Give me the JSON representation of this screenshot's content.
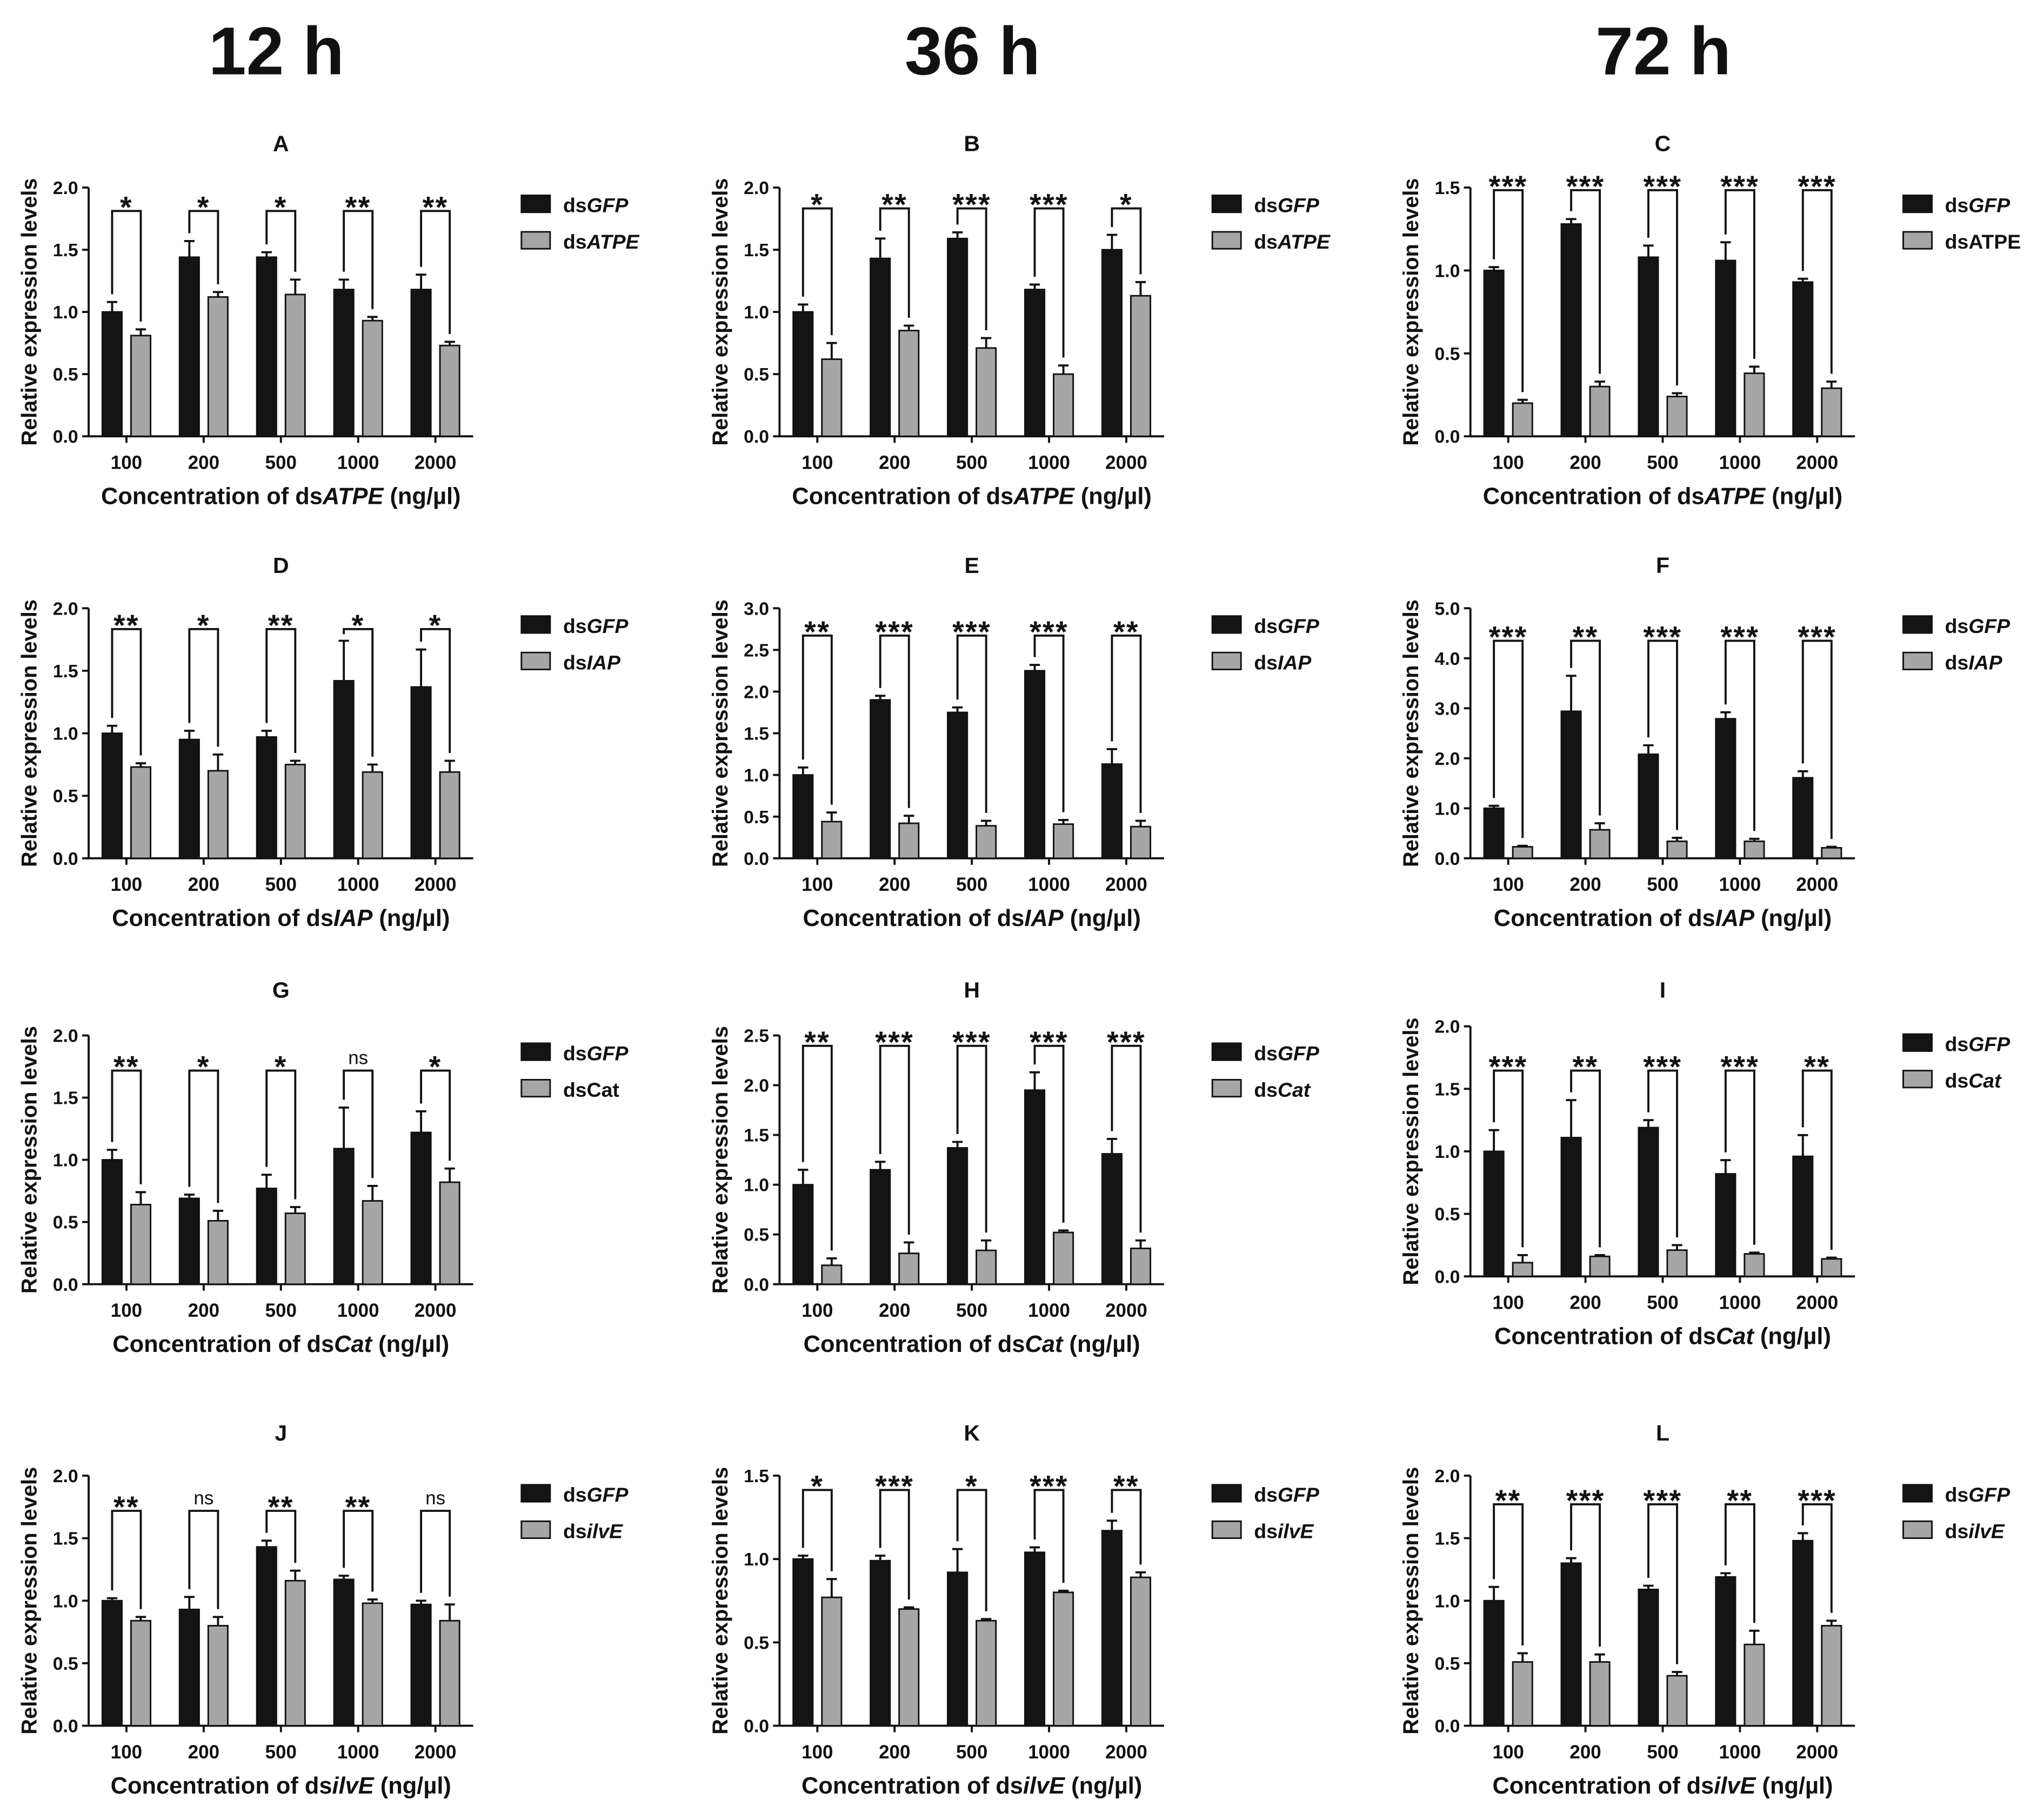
{
  "headers": [
    "12 h",
    "36 h",
    "72 h"
  ],
  "chart_data": [
    {
      "type": "bar",
      "title": "A",
      "categories": [
        "100",
        "200",
        "500",
        "1000",
        "2000"
      ],
      "ylabel": "Relative expression levels",
      "xlabel": {
        "prefix": "Concentration of ds",
        "gene": "ATPE",
        "suffix": " (ng/µl)"
      },
      "ylim": [
        0,
        2.0
      ],
      "yticks": [
        "0.0",
        "0.5",
        "1.0",
        "1.5",
        "2.0"
      ],
      "series": [
        {
          "prefix": "ds",
          "gene": "GFP",
          "gene_italic": true,
          "color": "#141414",
          "values": [
            1.0,
            1.44,
            1.44,
            1.18,
            1.18
          ],
          "errors": [
            0.08,
            0.13,
            0.04,
            0.08,
            0.12
          ]
        },
        {
          "prefix": "ds",
          "gene": "ATPE",
          "gene_italic": true,
          "color": "#a6a6a6",
          "values": [
            0.81,
            1.12,
            1.14,
            0.93,
            0.73
          ],
          "errors": [
            0.05,
            0.04,
            0.12,
            0.03,
            0.03
          ]
        }
      ],
      "significance": [
        "*",
        "*",
        "*",
        "**",
        "**"
      ]
    },
    {
      "type": "bar",
      "title": "B",
      "categories": [
        "100",
        "200",
        "500",
        "1000",
        "2000"
      ],
      "ylabel": "Relative expression levels",
      "xlabel": {
        "prefix": "Concentration of ds",
        "gene": "ATPE",
        "suffix": " (ng/µl)"
      },
      "ylim": [
        0,
        2.0
      ],
      "yticks": [
        "0.0",
        "0.5",
        "1.0",
        "1.5",
        "2.0"
      ],
      "series": [
        {
          "prefix": "ds",
          "gene": "GFP",
          "gene_italic": true,
          "color": "#141414",
          "values": [
            1.0,
            1.43,
            1.59,
            1.18,
            1.5
          ],
          "errors": [
            0.06,
            0.16,
            0.05,
            0.04,
            0.12
          ]
        },
        {
          "prefix": "ds",
          "gene": "ATPE",
          "gene_italic": true,
          "color": "#a6a6a6",
          "values": [
            0.62,
            0.85,
            0.71,
            0.5,
            1.13
          ],
          "errors": [
            0.13,
            0.04,
            0.08,
            0.07,
            0.11
          ]
        }
      ],
      "significance": [
        "*",
        "**",
        "***",
        "***",
        "*"
      ]
    },
    {
      "type": "bar",
      "title": "C",
      "categories": [
        "100",
        "200",
        "500",
        "1000",
        "2000"
      ],
      "ylabel": "Relative expression levels",
      "xlabel": {
        "prefix": "Concentration of ds",
        "gene": "ATPE",
        "suffix": " (ng/µl)"
      },
      "ylim": [
        0,
        1.5
      ],
      "yticks": [
        "0.0",
        "0.5",
        "1.0",
        "1.5"
      ],
      "series": [
        {
          "prefix": "ds",
          "gene": "GFP",
          "gene_italic": true,
          "color": "#141414",
          "values": [
            1.0,
            1.28,
            1.08,
            1.06,
            0.93
          ],
          "errors": [
            0.02,
            0.03,
            0.07,
            0.11,
            0.02
          ]
        },
        {
          "prefix": "ds",
          "gene": "ATPE",
          "gene_italic": false,
          "color": "#a6a6a6",
          "values": [
            0.2,
            0.3,
            0.24,
            0.38,
            0.29
          ],
          "errors": [
            0.02,
            0.03,
            0.02,
            0.04,
            0.04
          ]
        }
      ],
      "significance": [
        "***",
        "***",
        "***",
        "***",
        "***"
      ]
    },
    {
      "type": "bar",
      "title": "D",
      "categories": [
        "100",
        "200",
        "500",
        "1000",
        "2000"
      ],
      "ylabel": "Relative expression levels",
      "xlabel": {
        "prefix": "Concentration of ds",
        "gene": "IAP",
        "suffix": " (ng/µl)"
      },
      "ylim": [
        0,
        2.0
      ],
      "yticks": [
        "0.0",
        "0.5",
        "1.0",
        "1.5",
        "2.0"
      ],
      "series": [
        {
          "prefix": "ds",
          "gene": "GFP",
          "gene_italic": true,
          "color": "#141414",
          "values": [
            1.0,
            0.95,
            0.97,
            1.42,
            1.37
          ],
          "errors": [
            0.06,
            0.07,
            0.05,
            0.32,
            0.3
          ]
        },
        {
          "prefix": "ds",
          "gene": "IAP",
          "gene_italic": true,
          "color": "#a6a6a6",
          "values": [
            0.73,
            0.7,
            0.75,
            0.69,
            0.69
          ],
          "errors": [
            0.03,
            0.13,
            0.03,
            0.06,
            0.09
          ]
        }
      ],
      "significance": [
        "**",
        "*",
        "**",
        "*",
        "*"
      ]
    },
    {
      "type": "bar",
      "title": "E",
      "categories": [
        "100",
        "200",
        "500",
        "1000",
        "2000"
      ],
      "ylabel": "Relative expression levels",
      "xlabel": {
        "prefix": "Concentration of ds",
        "gene": "IAP",
        "suffix": " (ng/µl)"
      },
      "ylim": [
        0,
        3.0
      ],
      "yticks": [
        "0.0",
        "0.5",
        "1.0",
        "1.5",
        "2.0",
        "2.5",
        "3.0"
      ],
      "series": [
        {
          "prefix": "ds",
          "gene": "GFP",
          "gene_italic": true,
          "color": "#141414",
          "values": [
            1.0,
            1.9,
            1.75,
            2.25,
            1.13
          ],
          "errors": [
            0.09,
            0.05,
            0.06,
            0.07,
            0.18
          ]
        },
        {
          "prefix": "ds",
          "gene": "IAP",
          "gene_italic": true,
          "color": "#a6a6a6",
          "values": [
            0.44,
            0.42,
            0.39,
            0.41,
            0.38
          ],
          "errors": [
            0.11,
            0.09,
            0.06,
            0.05,
            0.07
          ]
        }
      ],
      "significance": [
        "**",
        "***",
        "***",
        "***",
        "**"
      ]
    },
    {
      "type": "bar",
      "title": "F",
      "categories": [
        "100",
        "200",
        "500",
        "1000",
        "2000"
      ],
      "ylabel": "Relative expression levels",
      "xlabel": {
        "prefix": "Concentration of ds",
        "gene": "IAP",
        "suffix": " (ng/µl)"
      },
      "ylim": [
        0,
        5.0
      ],
      "yticks": [
        "0.0",
        "1.0",
        "2.0",
        "3.0",
        "4.0",
        "5.0"
      ],
      "series": [
        {
          "prefix": "ds",
          "gene": "GFP",
          "gene_italic": true,
          "color": "#141414",
          "values": [
            1.0,
            2.94,
            2.08,
            2.79,
            1.61
          ],
          "errors": [
            0.05,
            0.71,
            0.18,
            0.13,
            0.13
          ]
        },
        {
          "prefix": "ds",
          "gene": "IAP",
          "gene_italic": true,
          "color": "#a6a6a6",
          "values": [
            0.23,
            0.57,
            0.34,
            0.34,
            0.21
          ],
          "errors": [
            0.02,
            0.13,
            0.07,
            0.05,
            0.02
          ]
        }
      ],
      "significance": [
        "***",
        "**",
        "***",
        "***",
        "***"
      ]
    },
    {
      "type": "bar",
      "title": "G",
      "categories": [
        "100",
        "200",
        "500",
        "1000",
        "2000"
      ],
      "ylabel": "Relative expression levels",
      "xlabel": {
        "prefix": "Concentration of ds",
        "gene": "Cat",
        "suffix": " (ng/µl)"
      },
      "ylim": [
        0,
        2.0
      ],
      "yticks": [
        "0.0",
        "0.5",
        "1.0",
        "1.5",
        "2.0"
      ],
      "series": [
        {
          "prefix": "ds",
          "gene": "GFP",
          "gene_italic": true,
          "color": "#141414",
          "values": [
            1.0,
            0.69,
            0.77,
            1.09,
            1.22
          ],
          "errors": [
            0.08,
            0.03,
            0.11,
            0.33,
            0.17
          ]
        },
        {
          "prefix": "ds",
          "gene": "Cat",
          "gene_italic": false,
          "color": "#a6a6a6",
          "values": [
            0.64,
            0.51,
            0.57,
            0.67,
            0.82
          ],
          "errors": [
            0.1,
            0.08,
            0.05,
            0.12,
            0.11
          ]
        }
      ],
      "significance": [
        "**",
        "*",
        "*",
        "ns",
        "*"
      ]
    },
    {
      "type": "bar",
      "title": "H",
      "categories": [
        "100",
        "200",
        "500",
        "1000",
        "2000"
      ],
      "ylabel": "Relative expression levels",
      "xlabel": {
        "prefix": "Concentration of ds",
        "gene": "Cat",
        "suffix": " (ng/µl)"
      },
      "ylim": [
        0,
        2.5
      ],
      "yticks": [
        "0.0",
        "0.5",
        "1.0",
        "1.5",
        "2.0",
        "2.5"
      ],
      "series": [
        {
          "prefix": "ds",
          "gene": "GFP",
          "gene_italic": true,
          "color": "#141414",
          "values": [
            1.0,
            1.15,
            1.37,
            1.95,
            1.31
          ],
          "errors": [
            0.15,
            0.08,
            0.06,
            0.18,
            0.15
          ]
        },
        {
          "prefix": "ds",
          "gene": "Cat",
          "gene_italic": true,
          "color": "#a6a6a6",
          "values": [
            0.19,
            0.31,
            0.34,
            0.52,
            0.36
          ],
          "errors": [
            0.07,
            0.11,
            0.1,
            0.02,
            0.08
          ]
        }
      ],
      "significance": [
        "**",
        "***",
        "***",
        "***",
        "***"
      ]
    },
    {
      "type": "bar",
      "title": "I",
      "categories": [
        "100",
        "200",
        "500",
        "1000",
        "2000"
      ],
      "ylabel": "Relative expression levels",
      "xlabel": {
        "prefix": "Concentration of ds",
        "gene": "Cat",
        "suffix": " (ng/µl)"
      },
      "ylim": [
        0,
        2.0
      ],
      "yticks": [
        "0.0",
        "0.5",
        "1.0",
        "1.5",
        "2.0"
      ],
      "series": [
        {
          "prefix": "ds",
          "gene": "GFP",
          "gene_italic": true,
          "color": "#141414",
          "values": [
            1.0,
            1.11,
            1.19,
            0.82,
            0.96
          ],
          "errors": [
            0.17,
            0.3,
            0.06,
            0.11,
            0.17
          ]
        },
        {
          "prefix": "ds",
          "gene": "Cat",
          "gene_italic": true,
          "color": "#a6a6a6",
          "values": [
            0.11,
            0.16,
            0.21,
            0.18,
            0.14
          ],
          "errors": [
            0.06,
            0.01,
            0.04,
            0.01,
            0.01
          ]
        }
      ],
      "significance": [
        "***",
        "**",
        "***",
        "***",
        "**"
      ]
    },
    {
      "type": "bar",
      "title": "J",
      "categories": [
        "100",
        "200",
        "500",
        "1000",
        "2000"
      ],
      "ylabel": "Relative expression levels",
      "xlabel": {
        "prefix": "Concentration of ds",
        "gene": "ilvE",
        "suffix": " (ng/µl)"
      },
      "ylim": [
        0,
        2.0
      ],
      "yticks": [
        "0.0",
        "0.5",
        "1.0",
        "1.5",
        "2.0"
      ],
      "series": [
        {
          "prefix": "ds",
          "gene": "GFP",
          "gene_italic": true,
          "color": "#141414",
          "values": [
            1.0,
            0.93,
            1.43,
            1.17,
            0.97
          ],
          "errors": [
            0.02,
            0.1,
            0.05,
            0.03,
            0.03
          ]
        },
        {
          "prefix": "ds",
          "gene": "ilvE",
          "gene_italic": true,
          "color": "#a6a6a6",
          "values": [
            0.84,
            0.8,
            1.16,
            0.98,
            0.84
          ],
          "errors": [
            0.03,
            0.07,
            0.08,
            0.03,
            0.13
          ]
        }
      ],
      "significance": [
        "**",
        "ns",
        "**",
        "**",
        "ns"
      ]
    },
    {
      "type": "bar",
      "title": "K",
      "categories": [
        "100",
        "200",
        "500",
        "1000",
        "2000"
      ],
      "ylabel": "Relative expression levels",
      "xlabel": {
        "prefix": "Concentration of ds",
        "gene": "ilvE",
        "suffix": " (ng/µl)"
      },
      "ylim": [
        0,
        1.5
      ],
      "yticks": [
        "0.0",
        "0.5",
        "1.0",
        "1.5"
      ],
      "series": [
        {
          "prefix": "ds",
          "gene": "GFP",
          "gene_italic": true,
          "color": "#141414",
          "values": [
            1.0,
            0.99,
            0.92,
            1.04,
            1.17
          ],
          "errors": [
            0.02,
            0.03,
            0.14,
            0.03,
            0.06
          ]
        },
        {
          "prefix": "ds",
          "gene": "ilvE",
          "gene_italic": true,
          "color": "#a6a6a6",
          "values": [
            0.77,
            0.7,
            0.63,
            0.8,
            0.89
          ],
          "errors": [
            0.11,
            0.01,
            0.01,
            0.01,
            0.03
          ]
        }
      ],
      "significance": [
        "*",
        "***",
        "*",
        "***",
        "**"
      ]
    },
    {
      "type": "bar",
      "title": "L",
      "categories": [
        "100",
        "200",
        "500",
        "1000",
        "2000"
      ],
      "ylabel": "Relative expression levels",
      "xlabel": {
        "prefix": "Concentration of ds",
        "gene": "ilvE",
        "suffix": " (ng/µl)"
      },
      "ylim": [
        0,
        2.0
      ],
      "yticks": [
        "0.0",
        "0.5",
        "1.0",
        "1.5",
        "2.0"
      ],
      "series": [
        {
          "prefix": "ds",
          "gene": "GFP",
          "gene_italic": true,
          "color": "#141414",
          "values": [
            1.0,
            1.3,
            1.09,
            1.19,
            1.48
          ],
          "errors": [
            0.11,
            0.04,
            0.03,
            0.03,
            0.06
          ]
        },
        {
          "prefix": "ds",
          "gene": "ilvE",
          "gene_italic": true,
          "color": "#a6a6a6",
          "values": [
            0.51,
            0.51,
            0.4,
            0.65,
            0.8
          ],
          "errors": [
            0.07,
            0.06,
            0.03,
            0.11,
            0.04
          ]
        }
      ],
      "significance": [
        "**",
        "***",
        "***",
        "**",
        "***"
      ]
    }
  ]
}
